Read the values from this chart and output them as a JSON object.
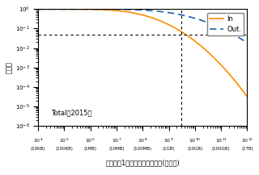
{
  "title": "",
  "xlabel": "利用者の1日のトラフィック量(バイト)",
  "ylabel": "補分布",
  "annotation": "Total（2015）",
  "xmin": 10000.0,
  "xmax": 1000000000000.0,
  "ymin": 1e-06,
  "ymax": 1.0,
  "hline_y": 0.05,
  "vline_x": 3000000000.0,
  "color_in": "#FF8C00",
  "color_out": "#1F5FAD",
  "xtick_labels": [
    [
      "$10^4$\n(10KB)",
      10000.0
    ],
    [
      "$10^5$\n(100KB)",
      100000.0
    ],
    [
      "$10^6$\n(1MB)",
      1000000.0
    ],
    [
      "$10^7$\n(10MB)",
      10000000.0
    ],
    [
      "$10^8$\n(100MB)",
      100000000.0
    ],
    [
      "$10^9$\n(1GB)",
      1000000000.0
    ],
    [
      "$10^{10}$\n(10GB)",
      10000000000.0
    ],
    [
      "$10^{11}$\n(100GB)",
      100000000000.0
    ],
    [
      "$10^{12}$\n(1TB)",
      1000000000000.0
    ]
  ],
  "legend_in": "In",
  "legend_out": "Out."
}
